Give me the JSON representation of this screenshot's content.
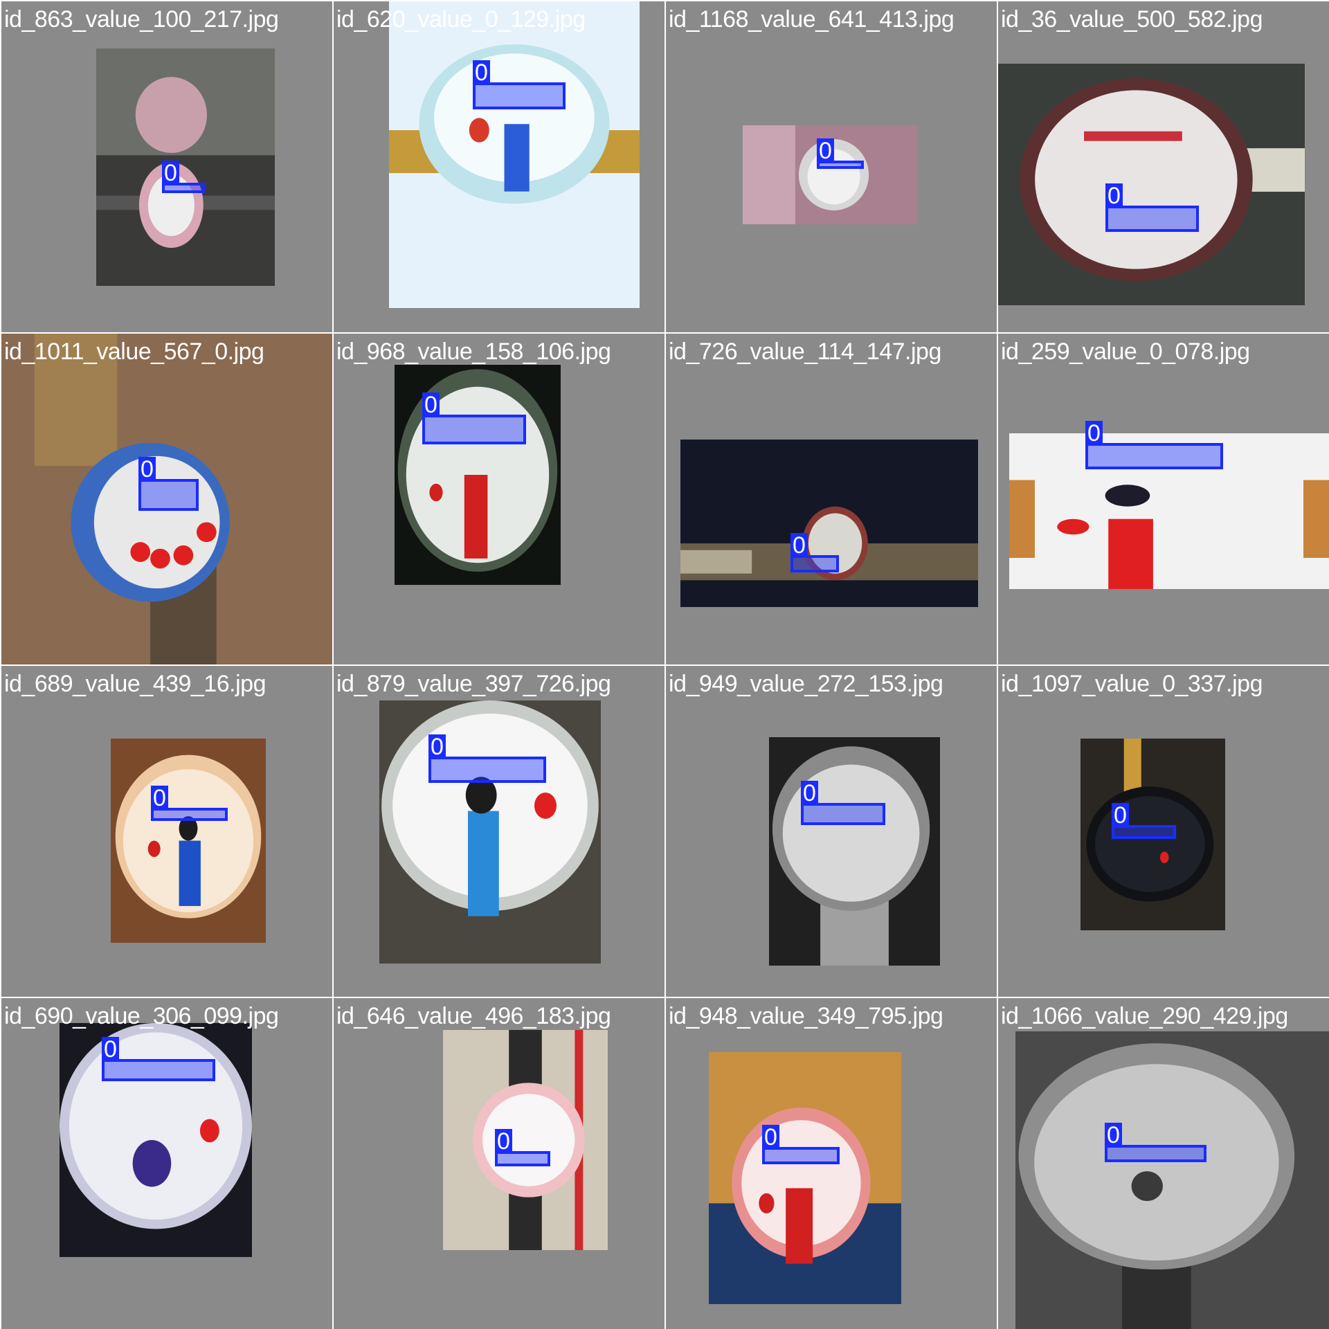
{
  "grid": {
    "tiles": [
      {
        "caption": "id_863_value_100_217.jpg",
        "box_label": "0"
      },
      {
        "caption": "id_620_value_0_129.jpg",
        "box_label": "0"
      },
      {
        "caption": "id_1168_value_641_413.jpg",
        "box_label": "0"
      },
      {
        "caption": "id_36_value_500_582.jpg",
        "box_label": "0"
      },
      {
        "caption": "id_1011_value_567_0.jpg",
        "box_label": "0"
      },
      {
        "caption": "id_968_value_158_106.jpg",
        "box_label": "0"
      },
      {
        "caption": "id_726_value_114_147.jpg",
        "box_label": "0"
      },
      {
        "caption": "id_259_value_0_078.jpg",
        "box_label": "0"
      },
      {
        "caption": "id_689_value_439_16.jpg",
        "box_label": "0"
      },
      {
        "caption": "id_879_value_397_726.jpg",
        "box_label": "0"
      },
      {
        "caption": "id_949_value_272_153.jpg",
        "box_label": "0"
      },
      {
        "caption": "id_1097_value_0_337.jpg",
        "box_label": "0"
      },
      {
        "caption": "id_690_value_306_099.jpg",
        "box_label": "0"
      },
      {
        "caption": "id_646_value_496_183.jpg",
        "box_label": "0"
      },
      {
        "caption": "id_948_value_349_795.jpg",
        "box_label": "0"
      },
      {
        "caption": "id_1066_value_290_429.jpg",
        "box_label": "0"
      }
    ]
  },
  "colors": {
    "tile_bg": "#8a8a8a",
    "caption": "#ffffff",
    "box": "#1a2cff"
  }
}
